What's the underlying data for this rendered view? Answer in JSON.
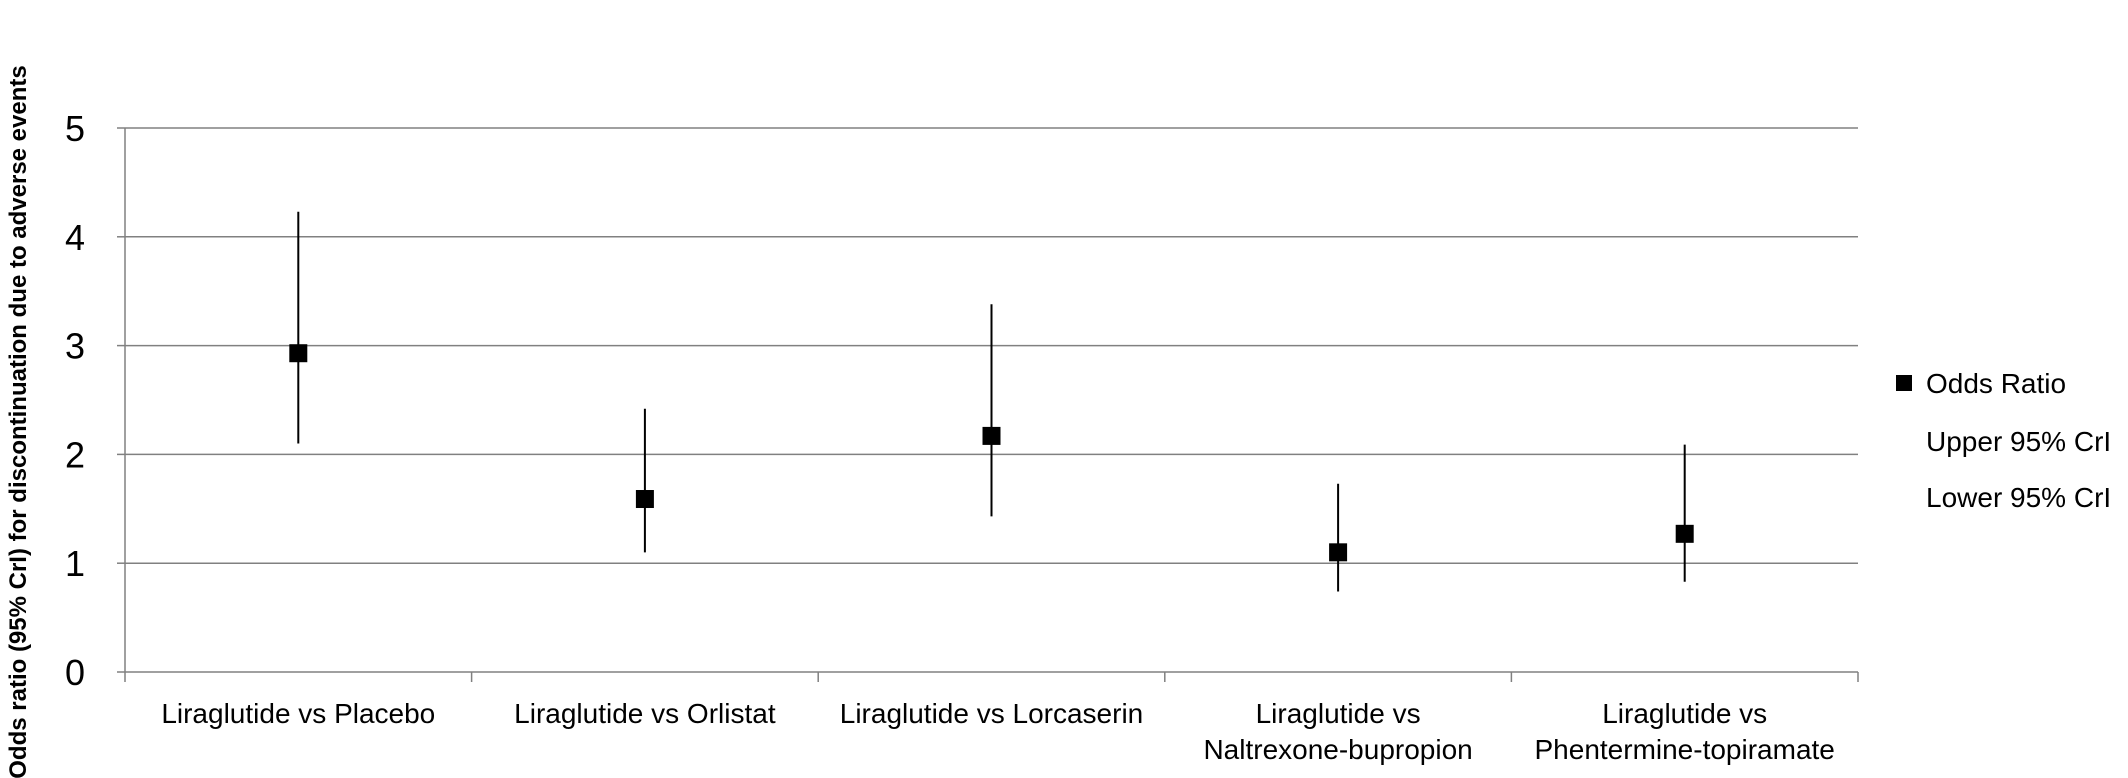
{
  "chart_data": {
    "type": "scatter",
    "title": "",
    "xlabel": "",
    "ylabel": "Odds ratio (95% CrI) for discontinuation due to adverse events",
    "ylim": [
      0,
      5
    ],
    "yticks": [
      0,
      1,
      2,
      3,
      4,
      5
    ],
    "grid": true,
    "legend_position": "right",
    "categories": [
      [
        "Liraglutide vs Placebo"
      ],
      [
        "Liraglutide vs Orlistat"
      ],
      [
        "Liraglutide vs Lorcaserin"
      ],
      [
        "Liraglutide vs",
        "Naltrexone-bupropion"
      ],
      [
        "Liraglutide vs",
        "Phentermine-topiramate"
      ]
    ],
    "series": [
      {
        "name": "Odds Ratio",
        "values": [
          2.93,
          1.59,
          2.17,
          1.1,
          1.27
        ]
      },
      {
        "name": "Upper 95% CrI",
        "values": [
          4.23,
          2.42,
          3.38,
          1.73,
          2.09
        ]
      },
      {
        "name": "Lower 95% CrI",
        "values": [
          2.1,
          1.1,
          1.43,
          0.74,
          0.83
        ]
      }
    ],
    "colors": {
      "marker": "#000000",
      "grid": "#808080"
    }
  }
}
